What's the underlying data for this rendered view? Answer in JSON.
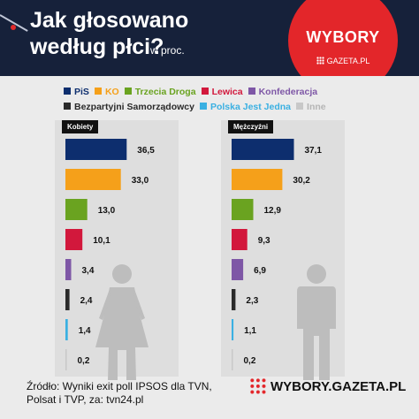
{
  "header": {
    "title_line1": "Jak głosowano",
    "title_line2": "według płci?",
    "subtitle": "w proc.",
    "badge_title": "WYBORY",
    "badge_sub": "GAZETA.PL"
  },
  "colors": {
    "header_bg": "#16213a",
    "badge_red": "#e3262a"
  },
  "chart_data": {
    "type": "bar",
    "orientation": "horizontal",
    "unit": "w proc.",
    "categories": [
      "PiS",
      "KO",
      "Trzecia Droga",
      "Lewica",
      "Konfederacja",
      "Bezpartyjni Samorządowcy",
      "Polska Jest Jedna",
      "Inne"
    ],
    "colors": [
      "#0d2e6e",
      "#f5a01a",
      "#6aa320",
      "#d2183c",
      "#7e57a6",
      "#2a2a2a",
      "#3ab0e2",
      "#c8c8c8"
    ],
    "series": [
      {
        "name": "Kobiety",
        "values": [
          36.5,
          33.0,
          13.0,
          10.1,
          3.4,
          2.4,
          1.4,
          0.2
        ],
        "labels": [
          "36,5",
          "33,0",
          "13,0",
          "10,1",
          "3,4",
          "2,4",
          "1,4",
          "0,2"
        ]
      },
      {
        "name": "Mężczyźni",
        "values": [
          37.1,
          30.2,
          12.9,
          9.3,
          6.9,
          2.3,
          1.1,
          0.2
        ],
        "labels": [
          "37,1",
          "30,2",
          "12,9",
          "9,3",
          "6,9",
          "2,3",
          "1,1",
          "0,2"
        ]
      }
    ],
    "legend_position": "top"
  },
  "footer": {
    "source_line1": "Źródło: Wyniki exit poll IPSOS dla TVN,",
    "source_line2": "Polsat i TVP, za: tvn24.pl",
    "logo_text": "WYBORY.GAZETA.PL"
  }
}
